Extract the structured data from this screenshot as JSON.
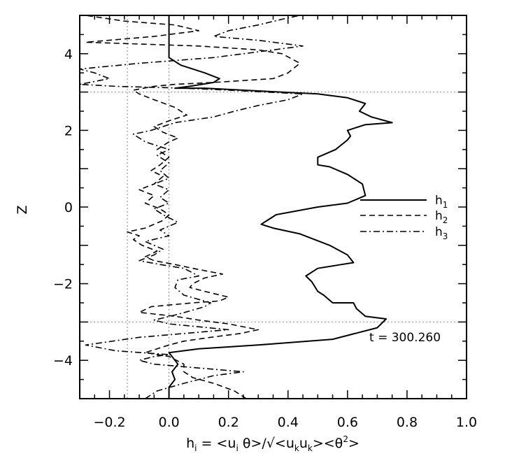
{
  "chart_data": {
    "type": "line",
    "xlabel": {
      "h": "h",
      "h_sub": "i",
      "body": " = <u",
      "body_sub": "i",
      "theta": " θ>/√<u",
      "k1": "k",
      "mid": "u",
      "k2": "k",
      "tail": "><θ",
      "sup": "2",
      "end": ">"
    },
    "ylabel": "Z",
    "xlim": [
      -0.3,
      1.0
    ],
    "ylim": [
      -5,
      5
    ],
    "xticks": [
      "−0.2",
      "0.0",
      "0.2",
      "0.4",
      "0.6",
      "0.8",
      "1.0"
    ],
    "xtick_values": [
      -0.2,
      0.0,
      0.2,
      0.4,
      0.6,
      0.8,
      1.0
    ],
    "yticks": [
      "−4",
      "−2",
      "0",
      "2",
      "4"
    ],
    "ytick_values": [
      -4,
      -2,
      0,
      2,
      4
    ],
    "reference_lines": {
      "vertical": [
        -0.14,
        0.0
      ],
      "horizontal": [
        3.0,
        -3.0
      ]
    },
    "annotation": "t = 300.260",
    "legend_position": "right-middle",
    "series": [
      {
        "name": "h",
        "sub": "1",
        "dash": "solid",
        "points": [
          [
            0.0,
            -5.0
          ],
          [
            0.0,
            -4.7
          ],
          [
            0.02,
            -4.5
          ],
          [
            0.01,
            -4.3
          ],
          [
            0.03,
            -4.1
          ],
          [
            0.01,
            -3.9
          ],
          [
            0.0,
            -3.8
          ],
          [
            0.1,
            -3.7
          ],
          [
            0.3,
            -3.6
          ],
          [
            0.55,
            -3.45
          ],
          [
            0.7,
            -3.15
          ],
          [
            0.73,
            -2.92
          ],
          [
            0.66,
            -2.85
          ],
          [
            0.63,
            -2.65
          ],
          [
            0.62,
            -2.5
          ],
          [
            0.55,
            -2.5
          ],
          [
            0.52,
            -2.3
          ],
          [
            0.5,
            -2.2
          ],
          [
            0.48,
            -1.95
          ],
          [
            0.46,
            -1.8
          ],
          [
            0.5,
            -1.6
          ],
          [
            0.58,
            -1.5
          ],
          [
            0.62,
            -1.45
          ],
          [
            0.6,
            -1.25
          ],
          [
            0.54,
            -1.0
          ],
          [
            0.44,
            -0.7
          ],
          [
            0.35,
            -0.55
          ],
          [
            0.31,
            -0.45
          ],
          [
            0.36,
            -0.2
          ],
          [
            0.5,
            0.0
          ],
          [
            0.6,
            0.1
          ],
          [
            0.66,
            0.3
          ],
          [
            0.65,
            0.6
          ],
          [
            0.6,
            0.85
          ],
          [
            0.54,
            1.05
          ],
          [
            0.5,
            1.1
          ],
          [
            0.5,
            1.3
          ],
          [
            0.56,
            1.5
          ],
          [
            0.6,
            1.75
          ],
          [
            0.61,
            1.85
          ],
          [
            0.6,
            2.0
          ],
          [
            0.66,
            2.15
          ],
          [
            0.75,
            2.2
          ],
          [
            0.68,
            2.35
          ],
          [
            0.64,
            2.5
          ],
          [
            0.66,
            2.7
          ],
          [
            0.6,
            2.85
          ],
          [
            0.5,
            2.95
          ],
          [
            0.3,
            3.03
          ],
          [
            0.12,
            3.1
          ],
          [
            0.02,
            3.1
          ],
          [
            0.07,
            3.15
          ],
          [
            0.15,
            3.25
          ],
          [
            0.17,
            3.35
          ],
          [
            0.12,
            3.5
          ],
          [
            0.04,
            3.7
          ],
          [
            0.0,
            3.9
          ],
          [
            0.0,
            4.2
          ],
          [
            0.0,
            4.5
          ],
          [
            0.0,
            4.8
          ],
          [
            0.0,
            5.0
          ]
        ]
      },
      {
        "name": "h",
        "sub": "2",
        "dash": "dashed",
        "points": [
          [
            0.26,
            -5.0
          ],
          [
            0.22,
            -4.8
          ],
          [
            0.15,
            -4.6
          ],
          [
            0.08,
            -4.45
          ],
          [
            0.05,
            -4.3
          ],
          [
            0.05,
            -4.1
          ],
          [
            0.0,
            -3.9
          ],
          [
            -0.08,
            -3.8
          ],
          [
            0.0,
            -3.6
          ],
          [
            0.05,
            -3.5
          ],
          [
            0.14,
            -3.4
          ],
          [
            0.24,
            -3.3
          ],
          [
            0.3,
            -3.2
          ],
          [
            0.2,
            -3.05
          ],
          [
            0.1,
            -2.95
          ],
          [
            0.02,
            -2.85
          ],
          [
            -0.1,
            -2.75
          ],
          [
            -0.06,
            -2.6
          ],
          [
            0.08,
            -2.5
          ],
          [
            0.17,
            -2.45
          ],
          [
            0.2,
            -2.35
          ],
          [
            0.12,
            -2.2
          ],
          [
            0.07,
            -2.1
          ],
          [
            0.08,
            -2.0
          ],
          [
            0.12,
            -1.85
          ],
          [
            0.18,
            -1.75
          ],
          [
            0.08,
            -1.6
          ],
          [
            0.02,
            -1.5
          ],
          [
            -0.05,
            -1.4
          ],
          [
            -0.08,
            -1.3
          ],
          [
            -0.04,
            -1.15
          ],
          [
            -0.09,
            -1.0
          ],
          [
            -0.12,
            -0.85
          ],
          [
            -0.1,
            -0.75
          ],
          [
            -0.14,
            -0.65
          ],
          [
            -0.08,
            -0.55
          ],
          [
            -0.02,
            -0.35
          ],
          [
            0.0,
            -0.2
          ],
          [
            -0.03,
            -0.05
          ],
          [
            -0.08,
            0.1
          ],
          [
            -0.05,
            0.3
          ],
          [
            -0.1,
            0.45
          ],
          [
            -0.05,
            0.6
          ],
          [
            -0.02,
            0.8
          ],
          [
            -0.06,
            0.95
          ],
          [
            -0.03,
            1.1
          ],
          [
            0.0,
            1.3
          ],
          [
            -0.04,
            1.5
          ],
          [
            0.0,
            1.7
          ],
          [
            0.03,
            1.8
          ],
          [
            -0.02,
            1.95
          ],
          [
            -0.05,
            2.1
          ],
          [
            0.0,
            2.25
          ],
          [
            0.06,
            2.4
          ],
          [
            0.02,
            2.6
          ],
          [
            -0.05,
            2.8
          ],
          [
            -0.1,
            2.95
          ],
          [
            -0.12,
            3.05
          ],
          [
            -0.05,
            3.15
          ],
          [
            0.02,
            3.2
          ],
          [
            0.15,
            3.25
          ],
          [
            0.35,
            3.35
          ],
          [
            0.4,
            3.5
          ],
          [
            0.44,
            3.75
          ],
          [
            0.38,
            4.0
          ],
          [
            0.3,
            4.1
          ],
          [
            0.1,
            4.2
          ],
          [
            -0.28,
            4.3
          ],
          [
            -0.05,
            4.45
          ],
          [
            0.1,
            4.6
          ],
          [
            0.02,
            4.75
          ],
          [
            -0.15,
            4.85
          ],
          [
            -0.28,
            5.0
          ]
        ]
      },
      {
        "name": "h",
        "sub": "3",
        "dash": "dashdot",
        "points": [
          [
            -0.08,
            -5.0
          ],
          [
            -0.04,
            -4.8
          ],
          [
            0.05,
            -4.6
          ],
          [
            0.15,
            -4.4
          ],
          [
            0.25,
            -4.3
          ],
          [
            0.1,
            -4.2
          ],
          [
            -0.05,
            -4.1
          ],
          [
            -0.1,
            -4.0
          ],
          [
            -0.05,
            -3.9
          ],
          [
            0.0,
            -3.85
          ],
          [
            -0.18,
            -3.75
          ],
          [
            -0.28,
            -3.6
          ],
          [
            -0.1,
            -3.4
          ],
          [
            0.2,
            -3.2
          ],
          [
            0.0,
            -3.05
          ],
          [
            -0.05,
            -2.95
          ],
          [
            0.03,
            -2.8
          ],
          [
            0.12,
            -2.6
          ],
          [
            0.14,
            -2.5
          ],
          [
            0.05,
            -2.3
          ],
          [
            0.02,
            -2.1
          ],
          [
            0.03,
            -1.9
          ],
          [
            0.1,
            -1.8
          ],
          [
            0.05,
            -1.6
          ],
          [
            -0.03,
            -1.5
          ],
          [
            -0.1,
            -1.4
          ],
          [
            -0.05,
            -1.25
          ],
          [
            -0.02,
            -1.1
          ],
          [
            -0.08,
            -0.9
          ],
          [
            0.0,
            -0.75
          ],
          [
            -0.03,
            -0.6
          ],
          [
            0.03,
            -0.4
          ],
          [
            -0.02,
            -0.2
          ],
          [
            -0.05,
            -0.05
          ],
          [
            0.0,
            0.1
          ],
          [
            -0.03,
            0.25
          ],
          [
            0.0,
            0.45
          ],
          [
            -0.05,
            0.6
          ],
          [
            0.0,
            0.75
          ],
          [
            -0.03,
            0.95
          ],
          [
            0.0,
            1.15
          ],
          [
            -0.04,
            1.35
          ],
          [
            0.0,
            1.5
          ],
          [
            -0.08,
            1.7
          ],
          [
            -0.12,
            1.9
          ],
          [
            -0.06,
            2.0
          ],
          [
            0.02,
            2.2
          ],
          [
            0.15,
            2.35
          ],
          [
            0.22,
            2.5
          ],
          [
            0.3,
            2.65
          ],
          [
            0.4,
            2.8
          ],
          [
            0.45,
            2.95
          ],
          [
            0.2,
            3.05
          ],
          [
            0.05,
            3.1
          ],
          [
            -0.18,
            3.15
          ],
          [
            -0.3,
            3.2
          ],
          [
            -0.2,
            3.35
          ],
          [
            -0.25,
            3.5
          ],
          [
            -0.3,
            3.6
          ],
          [
            -0.1,
            3.75
          ],
          [
            0.15,
            3.9
          ],
          [
            0.3,
            4.05
          ],
          [
            0.45,
            4.2
          ],
          [
            0.3,
            4.35
          ],
          [
            0.15,
            4.45
          ],
          [
            0.2,
            4.6
          ],
          [
            0.3,
            4.75
          ],
          [
            0.38,
            4.9
          ],
          [
            0.44,
            5.0
          ]
        ]
      }
    ]
  }
}
